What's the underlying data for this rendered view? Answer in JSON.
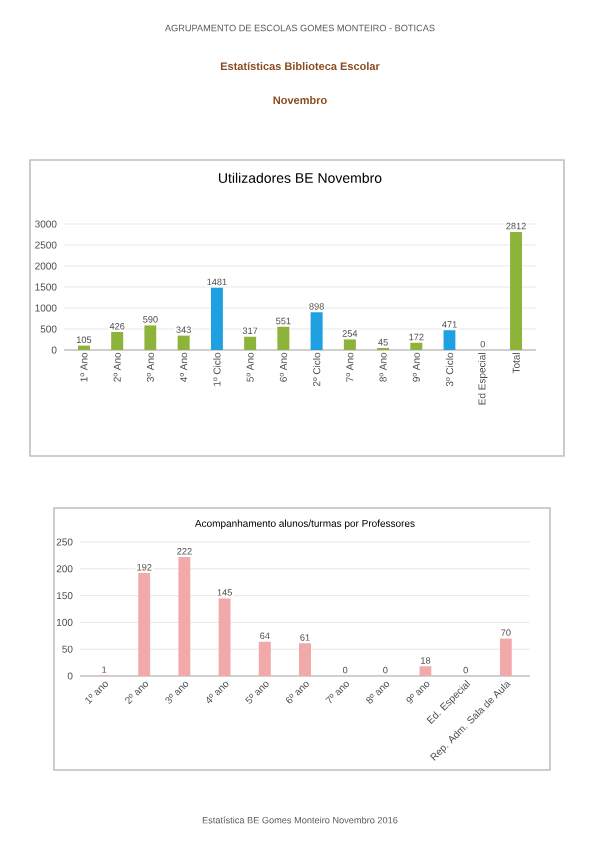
{
  "chart_data": [
    {
      "type": "bar",
      "title": "Utilizadores  BE Novembro",
      "annotations": [
        "AGRUPAMENTO DE ESCOLAS GOMES MONTEIRO - BOTICAS",
        "Estatísticas Biblioteca Escolar",
        "Novembro"
      ],
      "categories": [
        "1º Ano",
        "2º Ano",
        "3º Ano",
        "4º Ano",
        "1º Ciclo",
        "5º Ano",
        "6º Ano",
        "2º Ciclo",
        "7º Ano",
        "8º Ano",
        "9º Ano",
        "3º Ciclo",
        "Ed Especial",
        "Total"
      ],
      "values": [
        105,
        426,
        590,
        343,
        1481,
        317,
        551,
        898,
        254,
        45,
        172,
        471,
        0,
        2812
      ],
      "colors": [
        "#8db33a",
        "#8db33a",
        "#8db33a",
        "#8db33a",
        "#1fa0e0",
        "#8db33a",
        "#8db33a",
        "#1fa0e0",
        "#8db33a",
        "#8db33a",
        "#8db33a",
        "#1fa0e0",
        "#1a1a1a",
        "#8db33a"
      ],
      "ylim": [
        0,
        3000
      ],
      "yticks": [
        0,
        500,
        1000,
        1500,
        2000,
        2500,
        3000
      ],
      "grid": "y",
      "data_labels": true
    },
    {
      "type": "bar",
      "title": "Acompanhamento alunos/turmas por Professores",
      "annotations": [
        "Estatística BE Gomes Monteiro Novembro 2016"
      ],
      "categories": [
        "1º ano",
        "2º ano",
        "3º ano",
        "4º ano",
        "5º ano",
        "6º ano",
        "7º ano",
        "8º ano",
        "9º ano",
        "Ed. Especial",
        "Rep. Adm. Sala de Aula"
      ],
      "values": [
        1,
        192,
        222,
        145,
        64,
        61,
        0,
        0,
        18,
        0,
        70
      ],
      "color": "#f2a9a9",
      "ylim": [
        0,
        250
      ],
      "yticks": [
        0,
        50,
        100,
        150,
        200,
        250
      ],
      "grid": "y",
      "data_labels": true
    }
  ]
}
